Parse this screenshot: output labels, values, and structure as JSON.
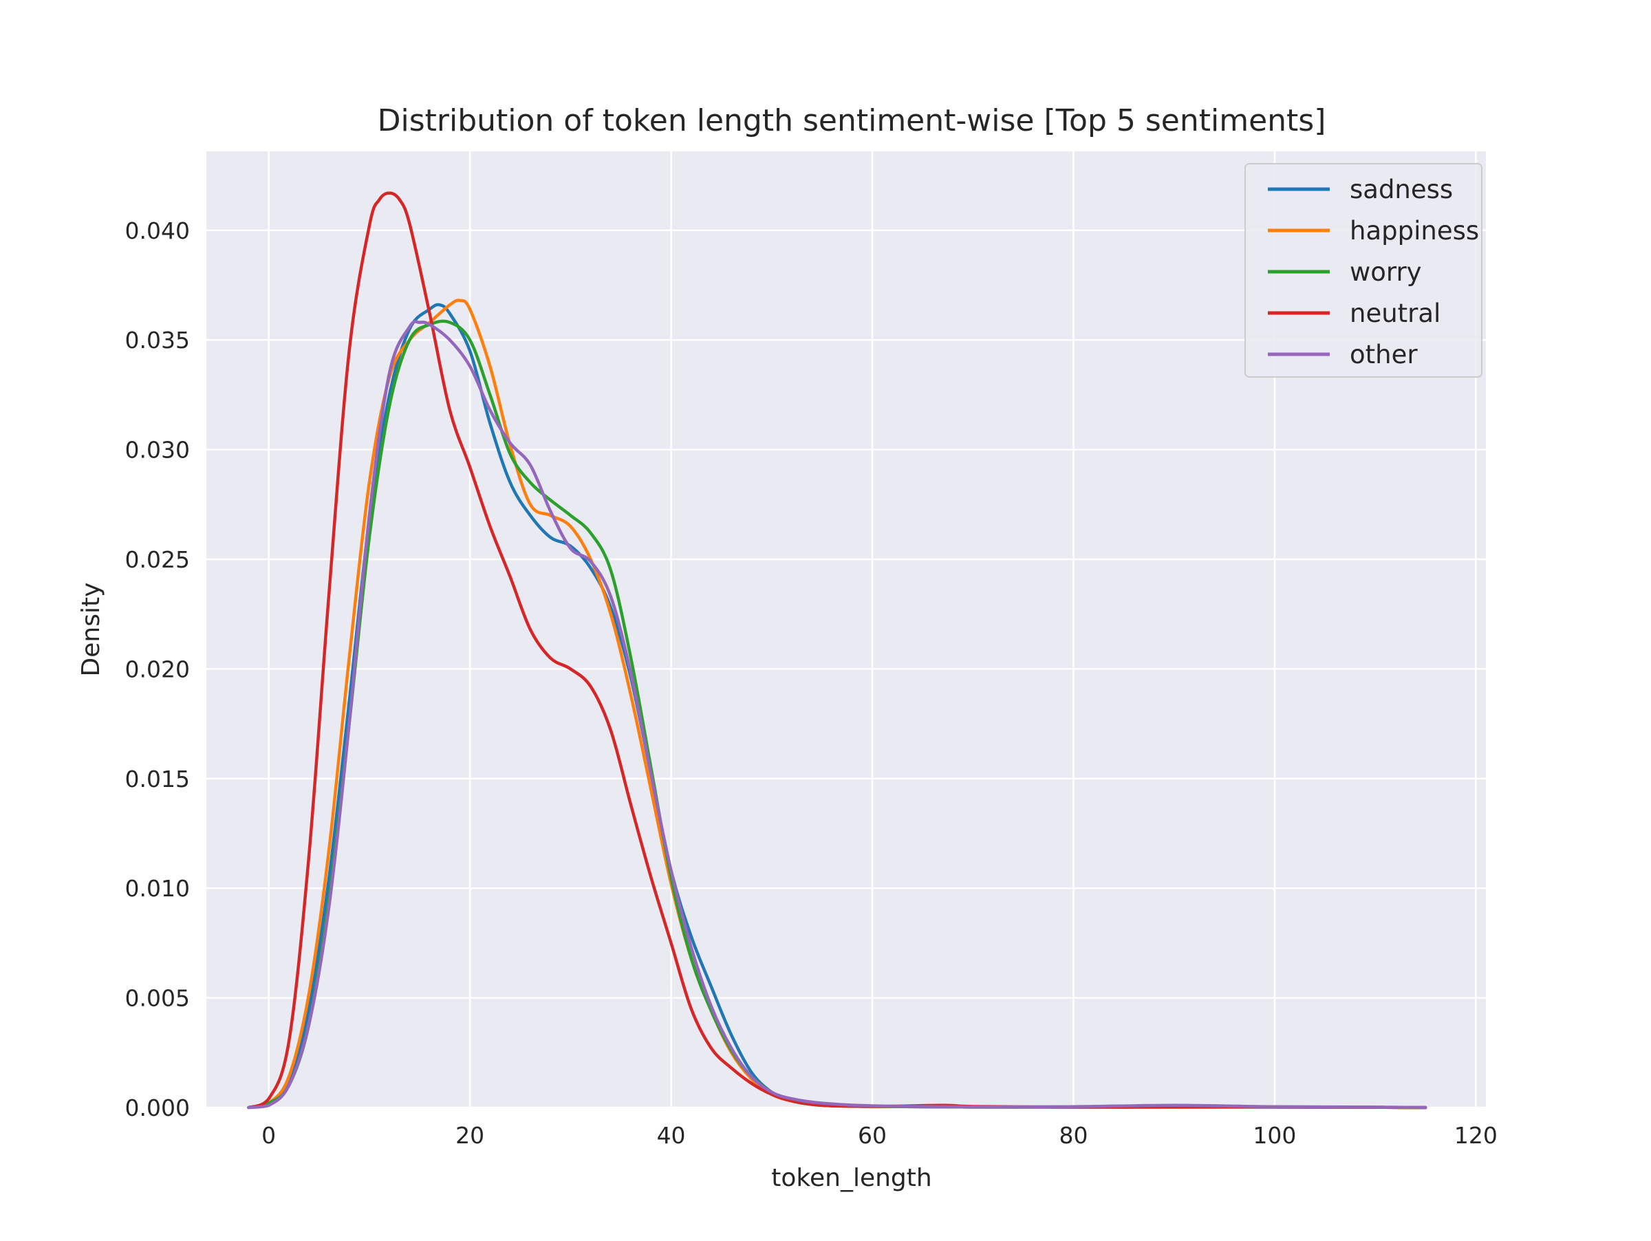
{
  "chart_data": {
    "type": "line",
    "title": "Distribution of token length sentiment-wise [Top 5 sentiments]",
    "xlabel": "token_length",
    "ylabel": "Density",
    "xlim": [
      -6.2,
      121
    ],
    "ylim": [
      0,
      0.0436
    ],
    "xticks": [
      0,
      20,
      40,
      60,
      80,
      100,
      120
    ],
    "xtick_labels": [
      "0",
      "20",
      "40",
      "60",
      "80",
      "100",
      "120"
    ],
    "yticks": [
      0,
      0.005,
      0.01,
      0.015,
      0.02,
      0.025,
      0.03,
      0.035,
      0.04
    ],
    "ytick_labels": [
      "0.000",
      "0.005",
      "0.010",
      "0.015",
      "0.020",
      "0.025",
      "0.030",
      "0.035",
      "0.040"
    ],
    "grid": true,
    "legend_position": "top-right",
    "background_color": "#eaeaf2",
    "series": [
      {
        "name": "sadness",
        "color": "#1f77b4",
        "x": [
          -2,
          0,
          2,
          4,
          6,
          8,
          10,
          12,
          14,
          16,
          17,
          18,
          20,
          22,
          24,
          26,
          28,
          30,
          32,
          34,
          36,
          38,
          40,
          42,
          44,
          46,
          48,
          50,
          52,
          55,
          60,
          70,
          80,
          90,
          100,
          110,
          115
        ],
        "y": [
          0,
          0.0002,
          0.0012,
          0.0045,
          0.0105,
          0.0185,
          0.0268,
          0.0325,
          0.0355,
          0.0364,
          0.0366,
          0.0362,
          0.0345,
          0.0312,
          0.0285,
          0.027,
          0.026,
          0.0256,
          0.0246,
          0.0228,
          0.0196,
          0.0152,
          0.0108,
          0.0078,
          0.0055,
          0.0033,
          0.0016,
          0.0007,
          0.0003,
          0.0001,
          5e-05,
          2e-05,
          2e-05,
          3e-05,
          2e-05,
          1e-05,
          0
        ]
      },
      {
        "name": "happiness",
        "color": "#ff7f0e",
        "x": [
          -2,
          0,
          2,
          4,
          6,
          8,
          10,
          12,
          14,
          16,
          18,
          19,
          20,
          22,
          24,
          26,
          28,
          30,
          32,
          34,
          36,
          38,
          40,
          42,
          44,
          46,
          48,
          50,
          52,
          55,
          60,
          70,
          80,
          90,
          100,
          110,
          115
        ],
        "y": [
          0,
          0.0002,
          0.0014,
          0.0052,
          0.0118,
          0.0205,
          0.0285,
          0.0333,
          0.035,
          0.0358,
          0.0366,
          0.0368,
          0.0364,
          0.0338,
          0.0302,
          0.0275,
          0.027,
          0.0265,
          0.025,
          0.0225,
          0.0188,
          0.0145,
          0.0102,
          0.0068,
          0.0044,
          0.0025,
          0.0013,
          0.0006,
          0.0003,
          0.0001,
          5e-05,
          2e-05,
          2e-05,
          2e-05,
          2e-05,
          1e-05,
          0
        ]
      },
      {
        "name": "worry",
        "color": "#2ca02c",
        "x": [
          -2,
          0,
          2,
          4,
          6,
          8,
          10,
          12,
          14,
          16,
          18,
          20,
          22,
          24,
          26,
          28,
          30,
          32,
          34,
          36,
          38,
          40,
          42,
          44,
          46,
          48,
          50,
          52,
          55,
          60,
          70,
          80,
          90,
          100,
          110,
          115
        ],
        "y": [
          0,
          0.0002,
          0.001,
          0.0038,
          0.0095,
          0.0175,
          0.026,
          0.032,
          0.035,
          0.0357,
          0.0358,
          0.035,
          0.0325,
          0.0298,
          0.0285,
          0.0277,
          0.027,
          0.0262,
          0.0245,
          0.0205,
          0.0155,
          0.0105,
          0.0068,
          0.0044,
          0.0026,
          0.0014,
          0.0007,
          0.0003,
          0.0001,
          5e-05,
          2e-05,
          2e-05,
          2e-05,
          2e-05,
          1e-05,
          0
        ]
      },
      {
        "name": "neutral",
        "color": "#d62728",
        "x": [
          -2,
          0,
          2,
          4,
          6,
          8,
          10,
          11,
          12,
          13,
          14,
          16,
          18,
          20,
          22,
          24,
          26,
          28,
          30,
          32,
          34,
          36,
          38,
          40,
          42,
          44,
          46,
          48,
          50,
          52,
          55,
          60,
          67,
          70,
          80,
          90,
          100,
          110,
          115
        ],
        "y": [
          0,
          0.0004,
          0.003,
          0.0115,
          0.0235,
          0.0345,
          0.0402,
          0.0414,
          0.0417,
          0.0414,
          0.0403,
          0.0362,
          0.0318,
          0.0292,
          0.0265,
          0.0242,
          0.0218,
          0.0205,
          0.02,
          0.0192,
          0.0172,
          0.0138,
          0.0105,
          0.0075,
          0.0045,
          0.0027,
          0.0018,
          0.0011,
          0.0006,
          0.0003,
          0.0001,
          5e-05,
          0.0001,
          5e-05,
          2e-05,
          2e-05,
          3e-05,
          1e-05,
          0
        ]
      },
      {
        "name": "other",
        "color": "#9467bd",
        "x": [
          -2,
          0,
          2,
          4,
          6,
          8,
          10,
          12,
          14,
          15,
          16,
          18,
          20,
          22,
          24,
          26,
          28,
          30,
          32,
          34,
          36,
          38,
          40,
          42,
          44,
          46,
          48,
          50,
          52,
          55,
          60,
          70,
          80,
          90,
          100,
          110,
          115
        ],
        "y": [
          0,
          0.0001,
          0.001,
          0.0038,
          0.0092,
          0.0175,
          0.027,
          0.0335,
          0.0356,
          0.0358,
          0.0357,
          0.035,
          0.0338,
          0.0318,
          0.0303,
          0.0293,
          0.0272,
          0.0255,
          0.0249,
          0.0233,
          0.0198,
          0.0152,
          0.0108,
          0.0073,
          0.0046,
          0.0027,
          0.0014,
          0.0007,
          0.0004,
          0.0002,
          8e-05,
          3e-05,
          4e-05,
          0.0001,
          4e-05,
          2e-05,
          0
        ]
      }
    ]
  }
}
